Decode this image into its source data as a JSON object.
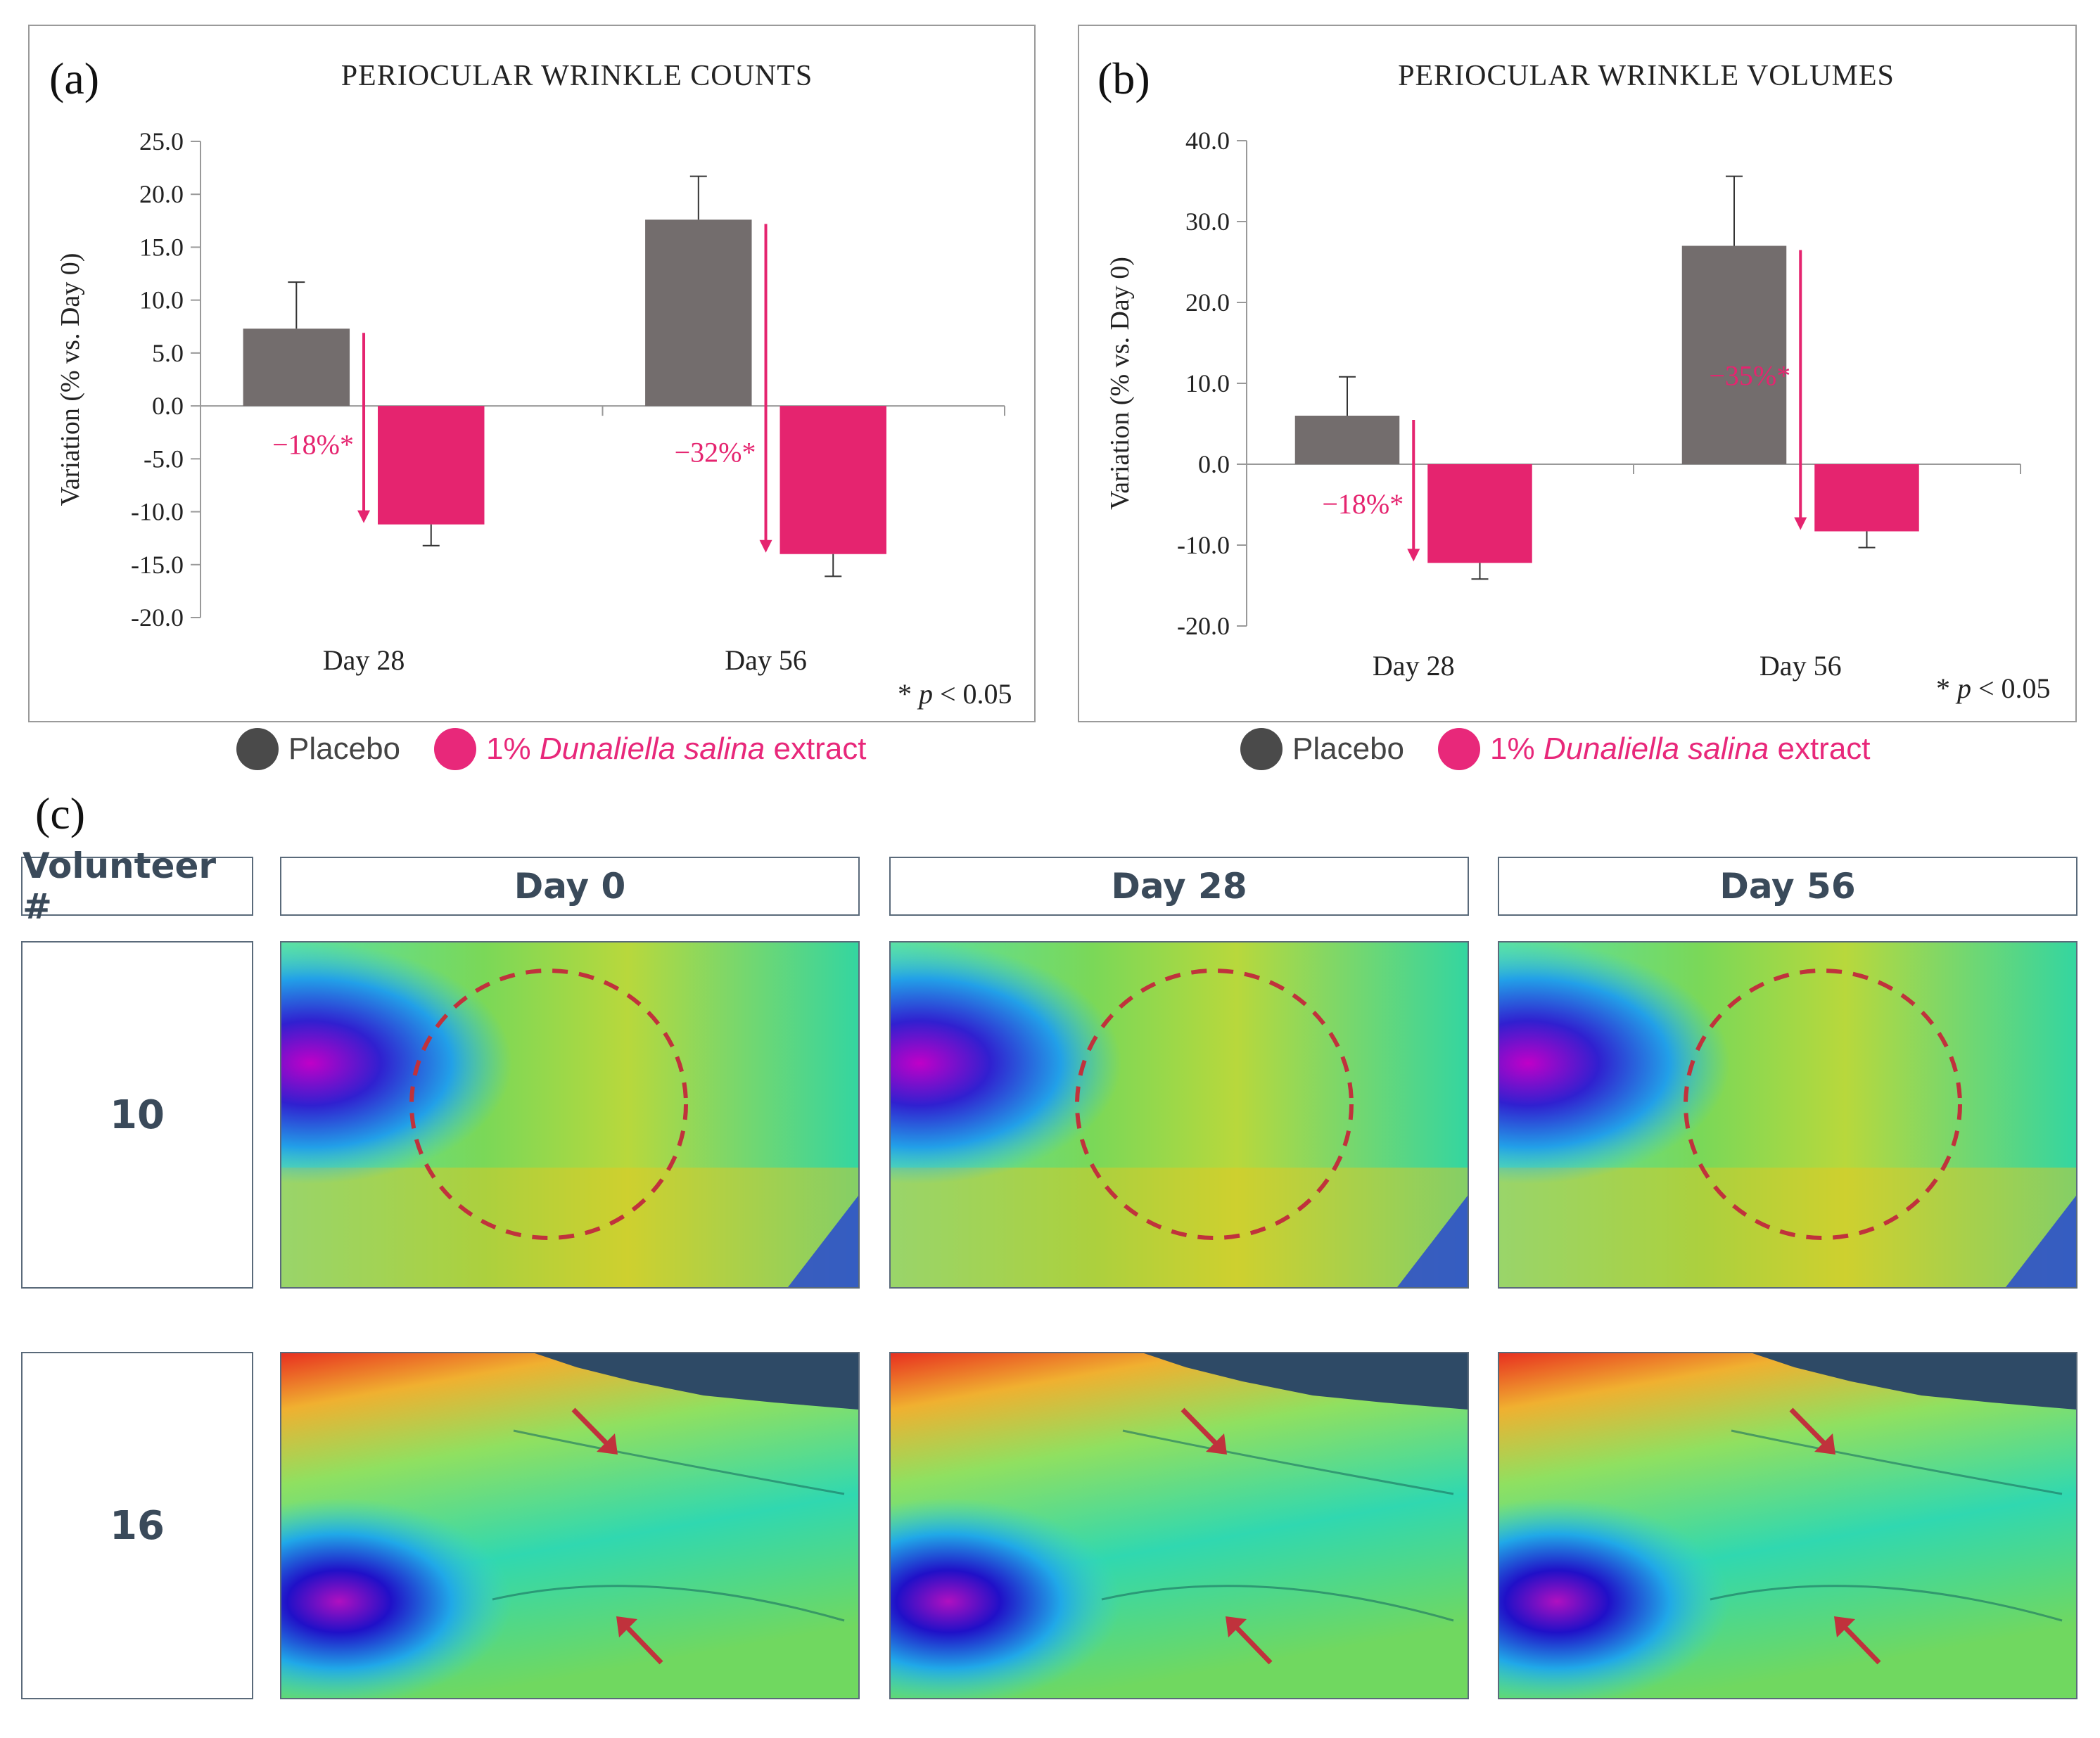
{
  "panel_a": {
    "letter": "(a)",
    "footnote_star": "* ",
    "footnote_p": "p",
    "footnote_rest": " < 0.05"
  },
  "panel_b": {
    "letter": "(b)",
    "footnote_star": "* ",
    "footnote_p": "p",
    "footnote_rest": " < 0.05"
  },
  "panel_c": {
    "letter": "(c)",
    "header_volunteer": "Volunteer #",
    "columns": [
      "Day 0",
      "Day 28",
      "Day 56"
    ],
    "volunteers": [
      "10",
      "16"
    ]
  },
  "legend": {
    "placebo": "Placebo",
    "extract_prefix": "1% ",
    "extract_species": "Dunaliella salina",
    "extract_suffix": " extract"
  },
  "colors": {
    "placebo": "#736d6d",
    "extract": "#e5246f",
    "annotation": "#e5246f",
    "axis": "#999999"
  },
  "chart_data": [
    {
      "type": "bar",
      "title": "PERIOCULAR WRINKLE COUNTS",
      "ylabel": "Variation (% vs. Day 0)",
      "xlabel": "",
      "categories": [
        "Day 28",
        "Day 56"
      ],
      "ylim": [
        -20,
        25
      ],
      "yticks": [
        25,
        20,
        15,
        10,
        5,
        0,
        -5,
        -10,
        -15,
        -20
      ],
      "ytick_labels": [
        "25.0",
        "20.0",
        "15.0",
        "10.0",
        "5.0",
        "0.0",
        "-5.0",
        "-10.0",
        "-15.0",
        "-20.0"
      ],
      "series": [
        {
          "name": "Placebo",
          "values": [
            7.3,
            17.6
          ],
          "errors": [
            4.4,
            4.1
          ]
        },
        {
          "name": "1% Dunaliella salina extract",
          "values": [
            -11.2,
            -14.0
          ],
          "errors": [
            2.0,
            2.1
          ]
        }
      ],
      "annotations": [
        "−18%*",
        "−32%*"
      ]
    },
    {
      "type": "bar",
      "title": "PERIOCULAR WRINKLE VOLUMES",
      "ylabel": "Variation (% vs. Day 0)",
      "xlabel": "",
      "categories": [
        "Day 28",
        "Day 56"
      ],
      "ylim": [
        -20,
        40
      ],
      "yticks": [
        40,
        30,
        20,
        10,
        0,
        -10,
        -20
      ],
      "ytick_labels": [
        "40.0",
        "30.0",
        "20.0",
        "10.0",
        "0.0",
        "-10.0",
        "-20.0"
      ],
      "series": [
        {
          "name": "Placebo",
          "values": [
            6.0,
            27.0
          ],
          "errors": [
            4.8,
            8.6
          ]
        },
        {
          "name": "1% Dunaliella salina extract",
          "values": [
            -12.2,
            -8.3
          ],
          "errors": [
            2.0,
            2.0
          ]
        }
      ],
      "annotations": [
        "−18%*",
        "−35%*"
      ]
    }
  ]
}
